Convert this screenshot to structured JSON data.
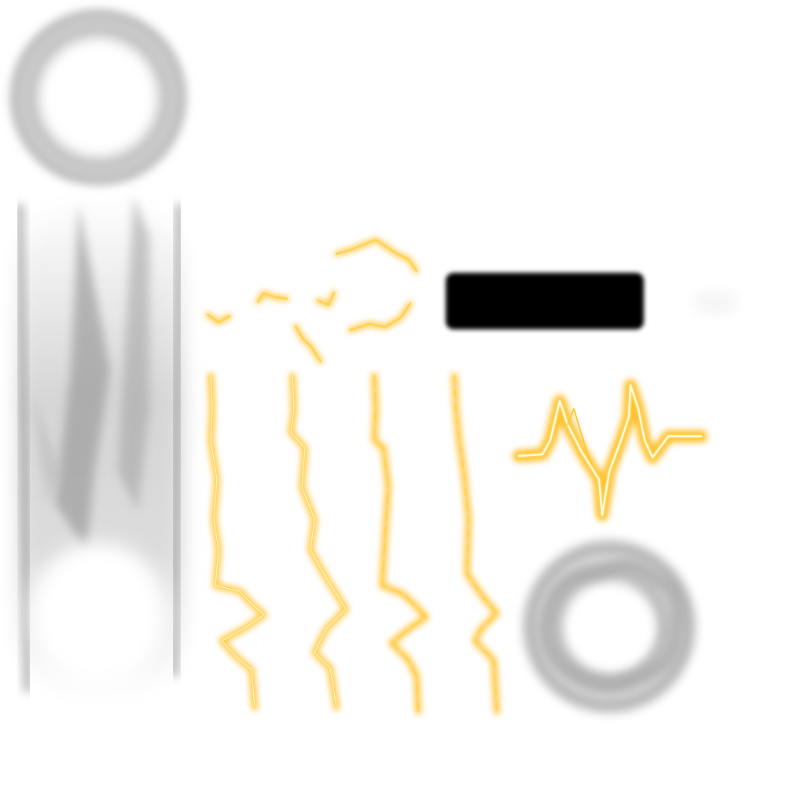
{
  "sheet": {
    "kind": "vfx-texture-atlas",
    "background": "#ffffff",
    "palette": {
      "glow_outer": "#ffb300",
      "glow_mid": "#ffcc33",
      "bolt_core": "#fff6c8",
      "smoke_dark": "#8a8a8a",
      "smoke_light": "#d9d9d9",
      "bar_fill": "#000000"
    },
    "sprites": [
      {
        "name": "ring-glow-sprite",
        "icon": "halo-ring"
      },
      {
        "name": "vertical-beam-sprite",
        "icon": "light-beam"
      },
      {
        "name": "lightning-fragments-sprite",
        "icon": "spark-fragments"
      },
      {
        "name": "black-bar-sprite",
        "icon": "shadow-bar"
      },
      {
        "name": "lightning-bolt-sprite",
        "icon": "lightning-bolt"
      },
      {
        "name": "zigzag-bolt-sprite",
        "icon": "zigzag-spark"
      },
      {
        "name": "smoke-ring-sprite",
        "icon": "smoke-ring"
      }
    ]
  }
}
